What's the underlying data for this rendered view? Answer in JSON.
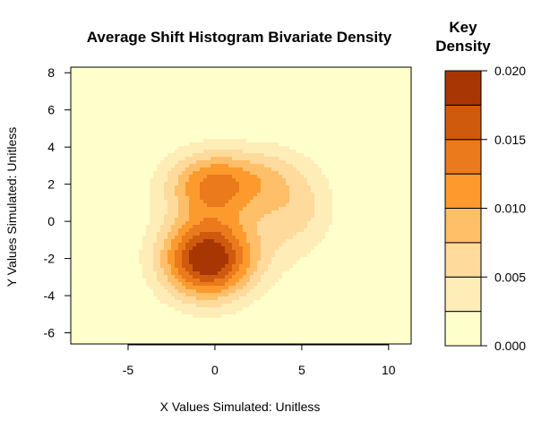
{
  "chart_data": {
    "type": "heatmap",
    "title": "Average Shift Histogram Bivariate Density",
    "xlabel": "X Values Simulated: Unitless",
    "ylabel": "Y Values Simulated: Unitless",
    "xlim": [
      -8.3,
      11.3
    ],
    "ylim": [
      -6.6,
      8.3
    ],
    "xticks": [
      -5,
      0,
      5,
      10
    ],
    "xtick_labels": [
      "-5",
      "0",
      "5",
      "10"
    ],
    "yticks": [
      -6,
      -4,
      -2,
      0,
      2,
      4,
      6,
      8
    ],
    "ytick_labels": [
      "-6",
      "-4",
      "-2",
      "0",
      "2",
      "4",
      "6",
      "8"
    ],
    "grid": false,
    "legend_position": "right",
    "key": {
      "title_line1": "Key",
      "title_line2": "Density",
      "ticks": [
        0.0,
        0.005,
        0.01,
        0.015,
        0.02
      ],
      "tick_labels": [
        "0.000",
        "0.005",
        "0.010",
        "0.015",
        "0.020"
      ],
      "levels": [
        0.0,
        0.0025,
        0.005,
        0.0075,
        0.01,
        0.0125,
        0.015,
        0.0175,
        0.02
      ],
      "colors": [
        "#FFFFCC",
        "#FFEDB8",
        "#FFDA9D",
        "#FFBF68",
        "#FD9A2E",
        "#EA7A1C",
        "#CF5A0E",
        "#A83605"
      ]
    },
    "density_modes": [
      {
        "x": -0.4,
        "y": -2.0,
        "peak": 0.0205,
        "sx": 1.9,
        "sy": 1.55
      },
      {
        "x": 0.0,
        "y": 2.0,
        "peak": 0.013,
        "sx": 2.0,
        "sy": 1.3
      },
      {
        "x": 4.2,
        "y": 0.3,
        "peak": 0.0045,
        "sx": 1.6,
        "sy": 1.9
      },
      {
        "x": 3.3,
        "y": 2.5,
        "peak": 0.003,
        "sx": 1.5,
        "sy": 1.3
      },
      {
        "x": 5.8,
        "y": 1.0,
        "peak": 0.0018,
        "sx": 1.2,
        "sy": 1.6
      }
    ]
  }
}
